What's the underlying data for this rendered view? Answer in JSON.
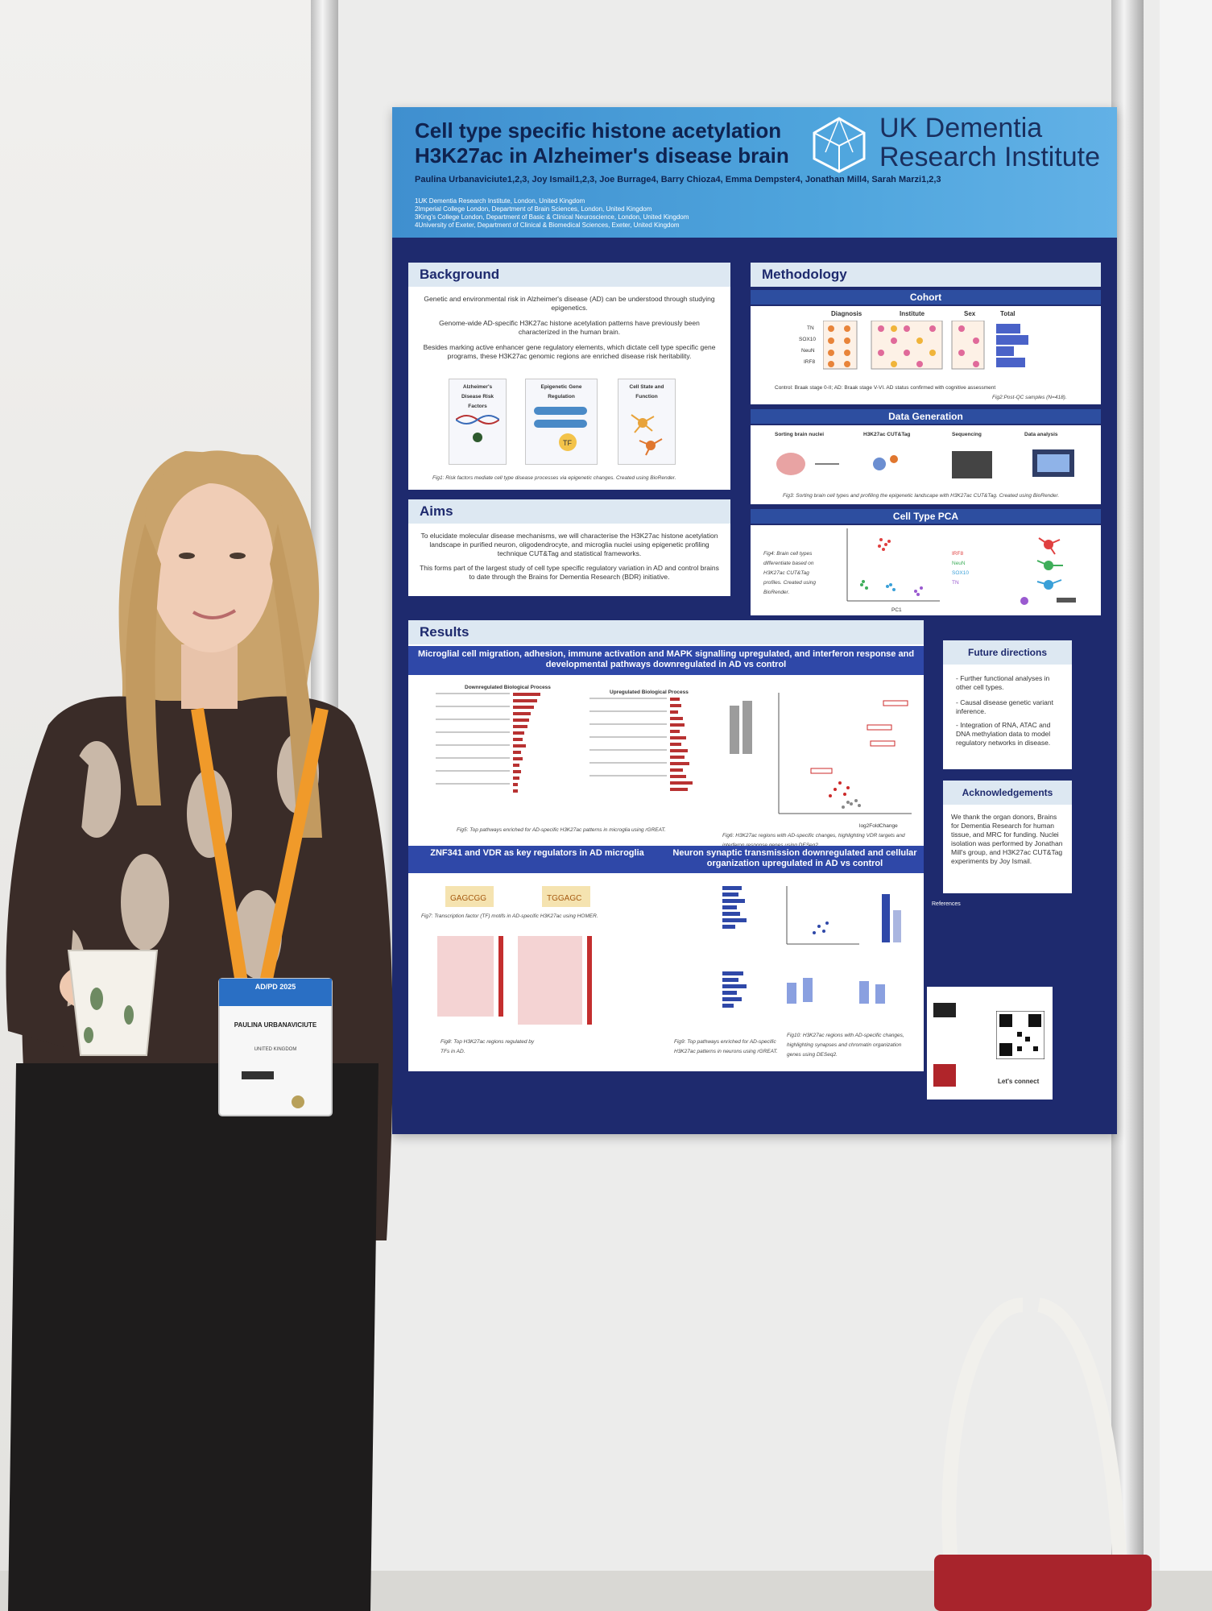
{
  "poster": {
    "title_line1": "Cell type specific histone acetylation",
    "title_line2": "H3K27ac in Alzheimer's disease brain",
    "authors": "Paulina Urbanaviciute1,2,3, Joy Ismail1,2,3, Joe Burrage4, Barry Chioza4, Emma Dempster4, Jonathan Mill4, Sarah Marzi1,2,3",
    "affiliations": [
      "1UK Dementia Research Institute, London, United Kingdom",
      "2Imperial College London, Department of Brain Sciences, London, United Kingdom",
      "3King's College London, Department of Basic & Clinical Neuroscience, London, United Kingdom",
      "4University of Exeter, Department of Clinical & Biomedical Sciences, Exeter, United Kingdom"
    ],
    "logo_line1": "UK Dementia",
    "logo_line2": "Research Institute",
    "background": {
      "title": "Background",
      "p1": "Genetic and environmental risk in Alzheimer's disease (AD) can be understood through studying epigenetics.",
      "p2": "Genome-wide AD-specific H3K27ac histone acetylation patterns have previously been characterized in the human brain.",
      "p3": "Besides marking active enhancer gene regulatory elements, which dictate cell type specific gene programs, these H3K27ac genomic regions are enriched disease risk heritability.",
      "box1": "Alzheimer's Disease Risk Factors",
      "box2": "Epigenetic Gene Regulation",
      "box3": "Cell State and Function",
      "caption": "Fig1: Risk factors mediate cell type disease processes via epigenetic changes. Created using BioRender."
    },
    "aims": {
      "title": "Aims",
      "p1": "To elucidate molecular disease mechanisms, we will characterise the H3K27ac histone acetylation landscape in purified neuron, oligodendrocyte, and microglia nuclei using epigenetic profiling technique CUT&Tag and statistical frameworks.",
      "p2": "This forms part of the largest study of cell type specific regulatory variation in AD and control brains to date through the Brains for Dementia Research (BDR) initiative."
    },
    "methodology": {
      "title": "Methodology",
      "cohort": "Cohort",
      "cohort_cols": [
        "Diagnosis",
        "Institute",
        "Sex",
        "Total"
      ],
      "cohort_rows": [
        "TN",
        "SOX10",
        "NeuN",
        "IRF8"
      ],
      "cohort_caption": "Control: Braak stage 0-II; AD: Braak stage V-VI. AD status confirmed with cognitive assessment",
      "cohort_fig": "Fig2:Post-QC samples (N=418).",
      "data_generation": "Data Generation",
      "steps": [
        "Sorting brain nuclei",
        "H3K27ac CUT&Tag",
        "Sequencing",
        "Data analysis"
      ],
      "dg_caption": "Fig3: Sorting brain cell types and profiling the epigenetic landscape with H3K27ac CUT&Tag. Created using BioRender.",
      "pca": "Cell Type PCA",
      "pca_caption": "Fig4: Brain cell types differentiate based on H3K27ac CUT&Tag profiles. Created using BioRender.",
      "pca_legend": [
        "IRF8",
        "NeuN",
        "SOX10",
        "TN"
      ],
      "pca_xlabel": "PC1"
    },
    "results": {
      "title": "Results",
      "band1": "Microglial cell migration, adhesion, immune activation and MAPK signalling upregulated, and interferon response and developmental pathways downregulated in AD vs control",
      "down_bp": "Downregulated Biological Process",
      "up_bp": "Upregulated Biological Process",
      "fig5": "Fig5: Top pathways enriched for AD-specific H3K27ac patterns in microglia using rGREAT.",
      "fig6": "Fig6: H3K27ac regions with AD-specific changes, highlighting VDR targets and interferon response genes using DESeq2.",
      "volcano_x": "log2FoldChange",
      "band2a": "ZNF341 and VDR as key regulators in AD microglia",
      "band2b": "Neuron synaptic transmission downregulated and cellular organization upregulated in AD vs control",
      "fig7": "Fig7: Transcription factor (TF) motifs in AD-specific H3K27ac using HOMER.",
      "fig8": "Fig8: Top H3K27ac regions regulated by TFs in AD.",
      "fig9": "Fig9: Top pathways enriched for AD-specific H3K27ac patterns in neurons using rGREAT.",
      "fig10": "Fig10: H3K27ac regions with AD-specific changes, highlighting synapses and chromatin organization genes using DESeq2."
    },
    "future": {
      "title": "Future directions",
      "items": [
        "- Further functional analyses in other cell types.",
        "- Causal disease genetic variant inference.",
        "- Integration of RNA, ATAC and DNA methylation data to model regulatory networks in disease."
      ]
    },
    "ack": {
      "title": "Acknowledgements",
      "text": "We thank the organ donors, Brains for Dementia Research for human tissue, and MRC for funding. Nuclei isolation was performed by Jonathan Mill's group, and H3K27ac CUT&Tag experiments by Joy Ismail."
    },
    "references_title": "References",
    "connect": "Let's connect"
  },
  "badge": {
    "name": "PAULINA URBANAVICIUTE",
    "country": "UNITED KINGDOM",
    "event": "AD/PD 2025"
  }
}
